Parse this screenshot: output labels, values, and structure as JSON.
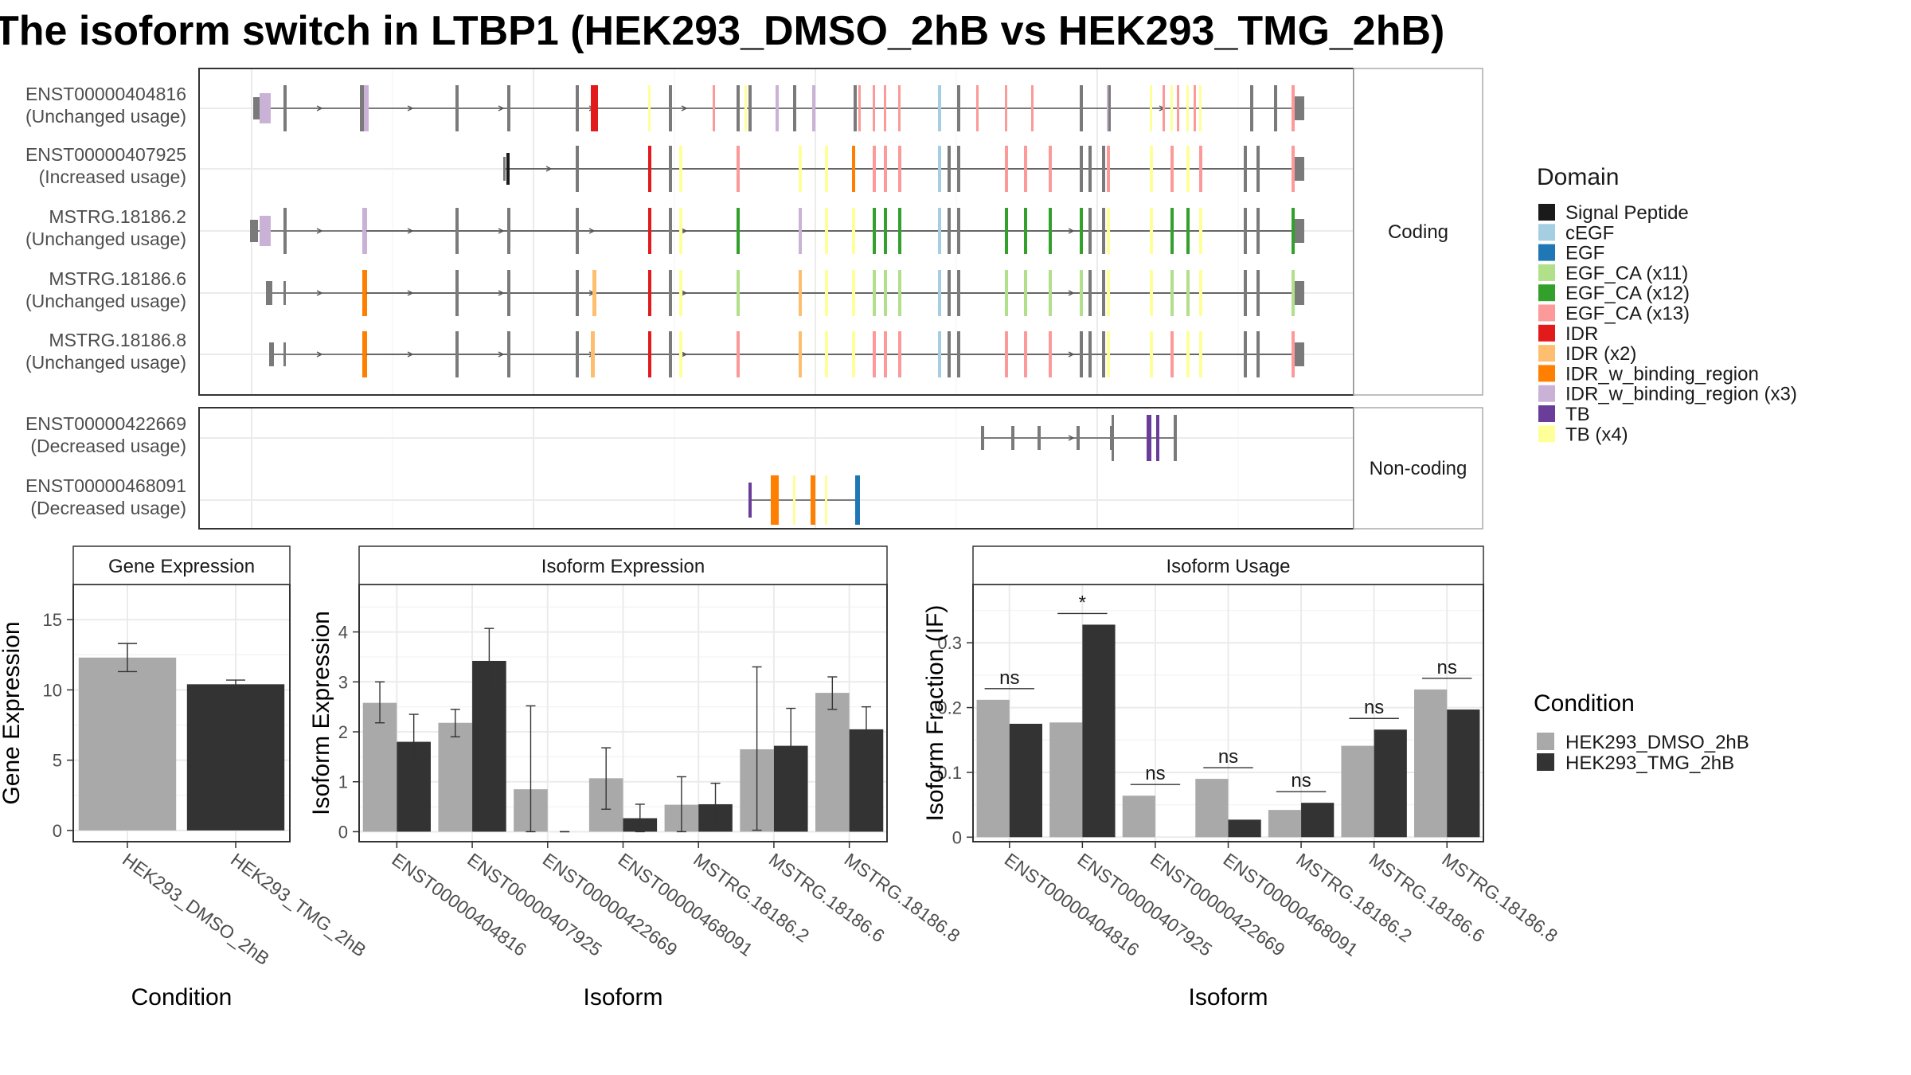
{
  "title": "The isoform switch in LTBP1 (HEK293_DMSO_2hB vs HEK293_TMG_2hB)",
  "colors": {
    "intron": "#545454",
    "exon_plain": "#7a7a7a",
    "panel_border": "#333333",
    "grid": "#ebebeb",
    "strip_fill": "#ffffff",
    "dmso": "#a9a9a9",
    "tmg": "#333333"
  },
  "domain_legend": {
    "title": "Domain",
    "items": [
      {
        "label": "Signal Peptide",
        "color": "#1a1a1a"
      },
      {
        "label": "cEGF",
        "color": "#a6cee3"
      },
      {
        "label": "EGF",
        "color": "#1f78b4"
      },
      {
        "label": "EGF_CA (x11)",
        "color": "#b2df8a"
      },
      {
        "label": "EGF_CA (x12)",
        "color": "#33a02c"
      },
      {
        "label": "EGF_CA (x13)",
        "color": "#fb9a99"
      },
      {
        "label": "IDR",
        "color": "#e31a1c"
      },
      {
        "label": "IDR (x2)",
        "color": "#fdbf6f"
      },
      {
        "label": "IDR_w_binding_region",
        "color": "#ff7f00"
      },
      {
        "label": "IDR_w_binding_region (x3)",
        "color": "#cab2d6"
      },
      {
        "label": "TB",
        "color": "#6a3d9a"
      },
      {
        "label": "TB (x4)",
        "color": "#ffff99"
      }
    ]
  },
  "condition_legend": {
    "title": "Condition",
    "items": [
      {
        "label": "HEK293_DMSO_2hB",
        "color": "#a9a9a9"
      },
      {
        "label": "HEK293_TMG_2hB",
        "color": "#333333"
      }
    ]
  },
  "transcript_panels": {
    "coding_label": "Coding",
    "noncoding_label": "Non-coding",
    "coding": [
      {
        "id": "ENST00000404816",
        "status": "(Unchanged usage)"
      },
      {
        "id": "ENST00000407925",
        "status": "(Increased usage)"
      },
      {
        "id": "MSTRG.18186.2",
        "status": "(Unchanged usage)"
      },
      {
        "id": "MSTRG.18186.6",
        "status": "(Unchanged usage)"
      },
      {
        "id": "MSTRG.18186.8",
        "status": "(Unchanged usage)"
      }
    ],
    "noncoding": [
      {
        "id": "ENST00000422669",
        "status": "(Decreased usage)"
      },
      {
        "id": "ENST00000468091",
        "status": "(Decreased usage)"
      }
    ]
  },
  "chart_data": [
    {
      "type": "bar",
      "title": "Gene Expression",
      "xlabel": "Condition",
      "ylabel": "Gene Expression",
      "categories": [
        "HEK293_DMSO_2hB",
        "HEK293_TMG_2hB"
      ],
      "values": [
        12.3,
        10.4
      ],
      "error": [
        [
          11.3,
          13.3
        ],
        [
          10.1,
          10.7
        ]
      ],
      "ylim": [
        -0.8,
        17.5
      ],
      "yticks": [
        0,
        5,
        10,
        15
      ]
    },
    {
      "type": "bar",
      "title": "Isoform Expression",
      "xlabel": "Isoform",
      "ylabel": "Isoform Expression",
      "categories": [
        "ENST00000404816",
        "ENST00000407925",
        "ENST00000422669",
        "ENST00000468091",
        "MSTRG.18186.2",
        "MSTRG.18186.6",
        "MSTRG.18186.8"
      ],
      "series": [
        {
          "name": "HEK293_DMSO_2hB",
          "values": [
            2.58,
            2.18,
            0.85,
            1.07,
            0.54,
            1.65,
            2.78
          ],
          "error": [
            [
              2.18,
              3.0
            ],
            [
              1.9,
              2.45
            ],
            [
              0.0,
              2.52
            ],
            [
              0.45,
              1.68
            ],
            [
              0.0,
              1.1
            ],
            [
              0.03,
              3.3
            ],
            [
              2.45,
              3.1
            ]
          ]
        },
        {
          "name": "HEK293_TMG_2hB",
          "values": [
            1.8,
            3.42,
            0.0,
            0.27,
            0.55,
            1.72,
            2.05
          ],
          "error": [
            [
              1.33,
              2.35
            ],
            [
              2.75,
              4.07
            ],
            [
              0.0,
              0.0
            ],
            [
              0.0,
              0.55
            ],
            [
              0.13,
              0.97
            ],
            [
              0.93,
              2.47
            ],
            [
              1.6,
              2.5
            ]
          ]
        }
      ],
      "ylim": [
        -0.2,
        4.95
      ],
      "yticks": [
        0,
        1,
        2,
        3,
        4
      ]
    },
    {
      "type": "bar",
      "title": "Isoform Usage",
      "xlabel": "Isoform",
      "ylabel": "Isoform Fraction (IF)",
      "categories": [
        "ENST00000404816",
        "ENST00000407925",
        "ENST00000422669",
        "ENST00000468091",
        "MSTRG.18186.2",
        "MSTRG.18186.6",
        "MSTRG.18186.8"
      ],
      "series": [
        {
          "name": "HEK293_DMSO_2hB",
          "values": [
            0.212,
            0.177,
            0.064,
            0.09,
            0.042,
            0.141,
            0.228
          ]
        },
        {
          "name": "HEK293_TMG_2hB",
          "values": [
            0.175,
            0.328,
            0.0,
            0.027,
            0.053,
            0.166,
            0.197
          ]
        }
      ],
      "significance": [
        "ns",
        "*",
        "ns",
        "ns",
        "ns",
        "ns",
        "ns"
      ],
      "ylim": [
        -0.007,
        0.39
      ],
      "yticks": [
        0.0,
        0.1,
        0.2,
        0.3
      ]
    }
  ]
}
